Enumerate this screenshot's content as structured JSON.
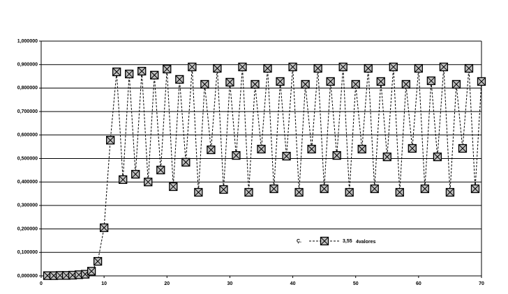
{
  "chart_data": {
    "type": "line",
    "x": [
      1,
      2,
      3,
      4,
      5,
      6,
      7,
      8,
      9,
      10,
      11,
      12,
      13,
      14,
      15,
      16,
      17,
      18,
      19,
      20,
      21,
      22,
      23,
      24,
      25,
      26,
      27,
      28,
      29,
      30,
      31,
      32,
      33,
      34,
      35,
      36,
      37,
      38,
      39,
      40,
      41,
      42,
      43,
      44,
      45,
      46,
      47,
      48,
      49,
      50,
      51,
      52,
      53,
      54,
      55,
      56,
      57,
      58,
      59,
      60,
      61,
      62,
      63,
      64,
      65,
      66,
      67,
      68,
      69,
      70
    ],
    "series": [
      {
        "name": "3,55",
        "color": "#000000",
        "marker_fill": "#c0c0c0",
        "values": [
          0.001,
          0.001,
          0.002,
          0.002,
          0.003,
          0.005,
          0.007,
          0.02,
          0.062,
          0.205,
          0.578,
          0.869,
          0.41,
          0.86,
          0.433,
          0.872,
          0.4,
          0.855,
          0.451,
          0.881,
          0.38,
          0.837,
          0.484,
          0.89,
          0.356,
          0.816,
          0.537,
          0.884,
          0.368,
          0.825,
          0.513,
          0.89,
          0.356,
          0.816,
          0.54,
          0.884,
          0.371,
          0.828,
          0.51,
          0.89,
          0.356,
          0.816,
          0.54,
          0.884,
          0.371,
          0.828,
          0.513,
          0.89,
          0.356,
          0.816,
          0.54,
          0.884,
          0.371,
          0.828,
          0.507,
          0.89,
          0.356,
          0.816,
          0.543,
          0.884,
          0.371,
          0.831,
          0.507,
          0.89,
          0.356,
          0.816,
          0.543,
          0.884,
          0.371,
          0.828
        ]
      }
    ],
    "legend_prefix": "Ç.",
    "annotation": "4valores",
    "xlim": [
      0,
      70
    ],
    "xticks": [
      0,
      10,
      20,
      30,
      40,
      50,
      60,
      70
    ],
    "ylim": [
      0,
      1
    ],
    "yticks": [
      {
        "value": 0,
        "label": "0,000000"
      },
      {
        "value": 0.1,
        "label": "0,100000"
      },
      {
        "value": 0.2,
        "label": "0,200000"
      },
      {
        "value": 0.3,
        "label": "0,300000"
      },
      {
        "value": 0.4,
        "label": "0,400000"
      },
      {
        "value": 0.5,
        "label": "0,500000"
      },
      {
        "value": 0.6,
        "label": "0,600000"
      },
      {
        "value": 0.7,
        "label": "0,700000"
      },
      {
        "value": 0.8,
        "label": "0,800000"
      },
      {
        "value": 0.9,
        "label": "0,900000"
      },
      {
        "value": 1,
        "label": "1,000000"
      }
    ],
    "grid": true
  }
}
